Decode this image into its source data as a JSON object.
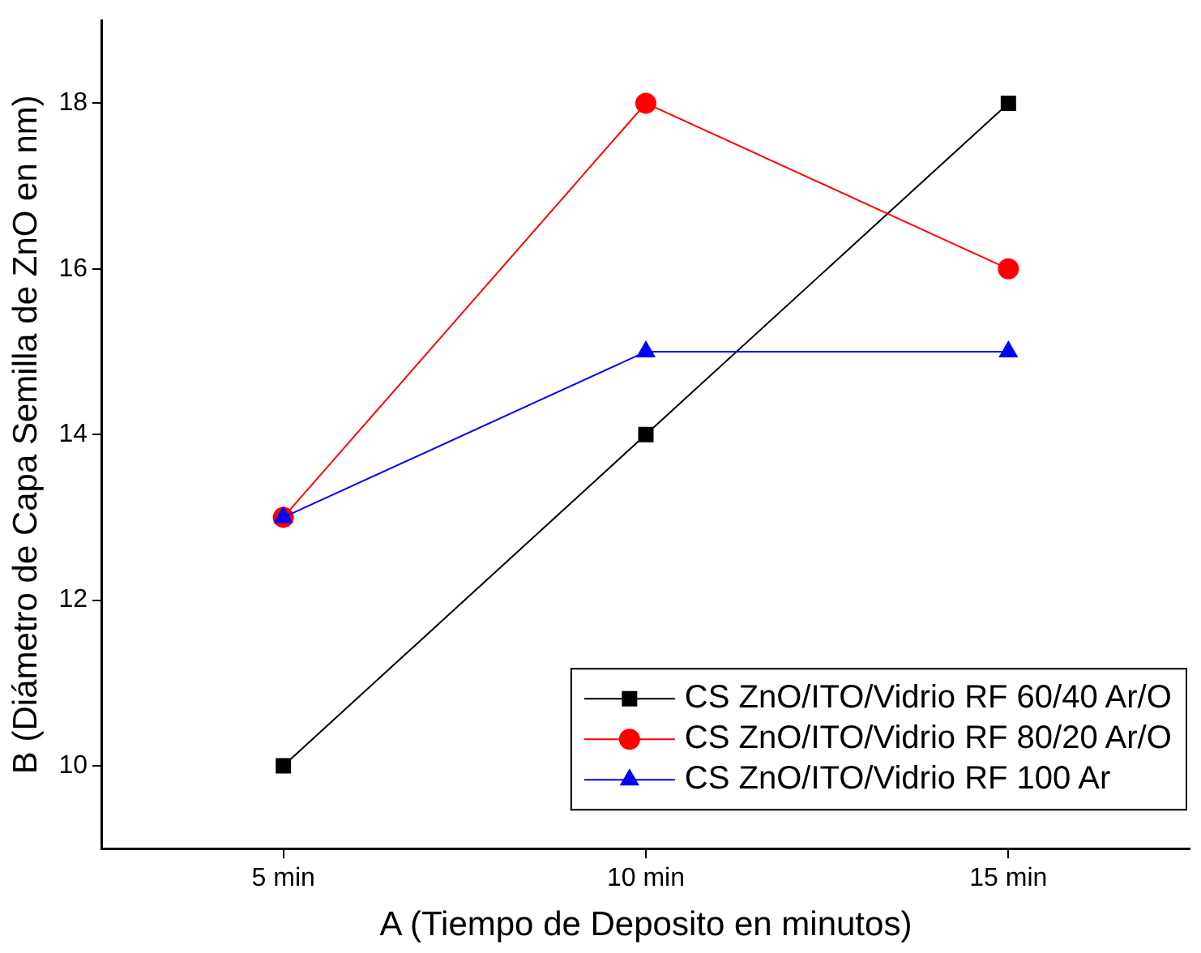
{
  "chart_data": {
    "type": "line",
    "xlabel": "A (Tiempo de Deposito en minutos)",
    "ylabel": "B (Diámetro de Capa Semilla de ZnO en nm)",
    "categories": [
      "5 min",
      "10 min",
      "15 min"
    ],
    "series": [
      {
        "name": "CS ZnO/ITO/Vidrio RF 60/40 Ar/O",
        "color": "#000000",
        "marker": "square",
        "values": [
          10,
          14,
          18
        ]
      },
      {
        "name": "CS ZnO/ITO/Vidrio RF 80/20 Ar/O",
        "color": "#ff0000",
        "marker": "circle",
        "values": [
          13,
          18,
          16
        ]
      },
      {
        "name": "CS ZnO/ITO/Vidrio RF 100 Ar",
        "color": "#0000ff",
        "marker": "triangle",
        "values": [
          13,
          15,
          15
        ]
      }
    ],
    "ylim": [
      9,
      19
    ],
    "yticks": [
      10,
      12,
      14,
      16,
      18
    ],
    "grid": false,
    "legend": "bottom right",
    "line_style": "solid"
  }
}
